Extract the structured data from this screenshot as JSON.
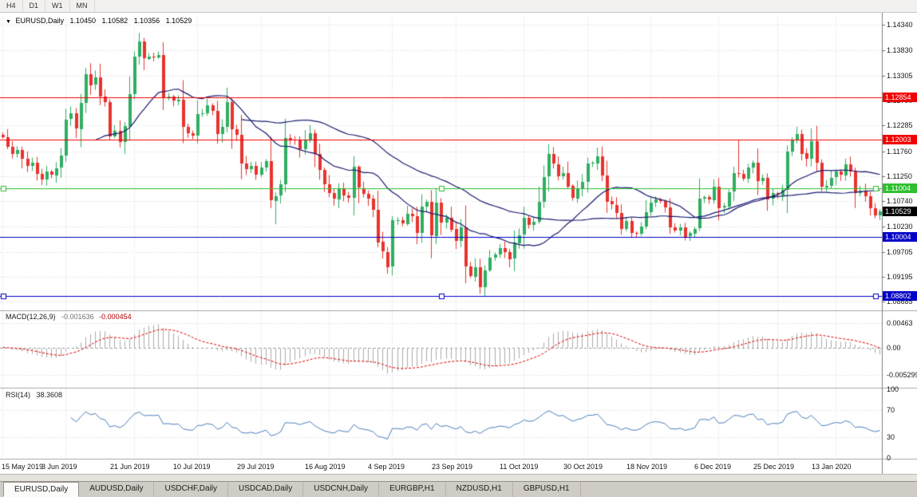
{
  "toolbar": {
    "timeframes": [
      "H4",
      "D1",
      "W1",
      "MN"
    ]
  },
  "icons": {
    "dropdown": "▼"
  },
  "chart_header": {
    "symbol": "EURUSD,Daily",
    "open": "1.10450",
    "high": "1.10582",
    "low": "1.10356",
    "close": "1.10529"
  },
  "tabs": [
    {
      "label": "EURUSD,Daily"
    },
    {
      "label": "AUDUSD,Daily"
    },
    {
      "label": "USDCHF,Daily"
    },
    {
      "label": "USDCAD,Daily"
    },
    {
      "label": "USDCNH,Daily"
    },
    {
      "label": "EURGBP,H1"
    },
    {
      "label": "NZDUSD,H1"
    },
    {
      "label": "GBPUSD,H1"
    }
  ],
  "chart_data": {
    "type": "candlestick",
    "symbol": "EURUSD",
    "timeframe": "Daily",
    "first_open": 1.121,
    "closes": [
      1.1205,
      1.1185,
      1.117,
      1.1178,
      1.116,
      1.1145,
      1.1152,
      1.113,
      1.1118,
      1.1135,
      1.1128,
      1.1142,
      1.1167,
      1.1241,
      1.1253,
      1.1222,
      1.1275,
      1.1334,
      1.1312,
      1.1327,
      1.1288,
      1.1277,
      1.1207,
      1.1218,
      1.1195,
      1.1227,
      1.1293,
      1.1369,
      1.14,
      1.1365,
      1.137,
      1.1368,
      1.1373,
      1.1285,
      1.1287,
      1.1279,
      1.1282,
      1.1226,
      1.1213,
      1.1208,
      1.1252,
      1.1253,
      1.127,
      1.1259,
      1.1211,
      1.1226,
      1.1277,
      1.1221,
      1.1209,
      1.1151,
      1.1139,
      1.1146,
      1.1128,
      1.1143,
      1.1156,
      1.1076,
      1.1085,
      1.1108,
      1.1203,
      1.12,
      1.1199,
      1.1181,
      1.12,
      1.1213,
      1.1171,
      1.1138,
      1.1108,
      1.109,
      1.1078,
      1.11,
      1.1086,
      1.1081,
      1.1144,
      1.1101,
      1.1089,
      1.1079,
      1.1057,
      1.0991,
      1.0971,
      1.094,
      1.1035,
      1.1035,
      1.1028,
      1.1049,
      1.1044,
      1.101,
      1.1063,
      1.1073,
      1.1004,
      1.1072,
      1.1031,
      1.1041,
      1.1017,
      1.0993,
      1.102,
      1.0941,
      1.0921,
      1.094,
      1.0899,
      1.0933,
      1.0959,
      1.0966,
      1.0979,
      1.0971,
      1.0957,
      1.0989,
      1.1005,
      1.104,
      1.1026,
      1.1032,
      1.1073,
      1.1124,
      1.117,
      1.115,
      1.1126,
      1.1132,
      1.1105,
      1.108,
      1.1099,
      1.1113,
      1.1151,
      1.1152,
      1.1166,
      1.1127,
      1.1074,
      1.1067,
      1.105,
      1.1018,
      1.1034,
      1.1009,
      1.1007,
      1.1022,
      1.1052,
      1.1072,
      1.1078,
      1.1074,
      1.1061,
      1.1021,
      1.1015,
      1.1021,
      1.1002,
      1.1009,
      1.1018,
      1.1079,
      1.1082,
      1.1077,
      1.1104,
      1.106,
      1.1064,
      1.1093,
      1.1131,
      1.113,
      1.1121,
      1.1143,
      1.1152,
      1.1115,
      1.1122,
      1.1078,
      1.109,
      1.1087,
      1.1098,
      1.1176,
      1.1199,
      1.1212,
      1.1172,
      1.116,
      1.1196,
      1.1152,
      1.1103,
      1.1106,
      1.1122,
      1.1134,
      1.1127,
      1.115,
      1.1136,
      1.109,
      1.1095,
      1.1084,
      1.106,
      1.1045,
      1.10529
    ],
    "wick_overrides": {
      "28": {
        "h": 1.1418
      },
      "55": {
        "l": 1.106
      },
      "56": {
        "l": 1.1027
      },
      "79": {
        "l": 1.0926
      },
      "98": {
        "l": 1.0885
      },
      "99": {
        "l": 1.0879
      },
      "151": {
        "h": 1.12
      },
      "161": {
        "h": 1.1188
      },
      "180": {
        "o": 1.1045,
        "h": 1.10582,
        "l": 1.10356
      }
    },
    "ma_periods": [
      20,
      50
    ],
    "x_labels": [
      {
        "label": "15 May 2019",
        "i": 0
      },
      {
        "label": "3 Jun 2019",
        "i": 13
      },
      {
        "label": "21 Jun 2019",
        "i": 27
      },
      {
        "label": "10 Jul 2019",
        "i": 40
      },
      {
        "label": "29 Jul 2019",
        "i": 53
      },
      {
        "label": "16 Aug 2019",
        "i": 67
      },
      {
        "label": "4 Sep 2019",
        "i": 80
      },
      {
        "label": "23 Sep 2019",
        "i": 93
      },
      {
        "label": "11 Oct 2019",
        "i": 107
      },
      {
        "label": "30 Oct 2019",
        "i": 120
      },
      {
        "label": "18 Nov 2019",
        "i": 133
      },
      {
        "label": "6 Dec 2019",
        "i": 147
      },
      {
        "label": "25 Dec 2019",
        "i": 159
      },
      {
        "label": "13 Jan 2020",
        "i": 171
      }
    ],
    "y_ticks": [
      "1.14340",
      "1.13830",
      "1.13305",
      "1.12790",
      "1.12285",
      "1.11760",
      "1.11250",
      "1.10740",
      "1.10230",
      "1.09705",
      "1.09195",
      "1.08685"
    ],
    "levels": [
      {
        "value": 1.12854,
        "label": "1.12854",
        "color": "#f00000",
        "handles": false
      },
      {
        "value": 1.12003,
        "label": "1.12003",
        "color": "#f00000",
        "handles": false
      },
      {
        "value": 1.11004,
        "label": "1.11004",
        "color": "#2fbf2f",
        "handles": true
      },
      {
        "value": 1.10004,
        "label": "1.10004",
        "color": "#0000c8",
        "handles": false
      },
      {
        "value": 1.08802,
        "label": "1.08802",
        "color": "#0000c8",
        "handles": true
      }
    ],
    "current_price": {
      "value": 1.10529,
      "label": "1.10529"
    },
    "macd": {
      "label": "MACD(12,26,9)",
      "values": [
        "-0.001636",
        "-0.000454"
      ],
      "fast": 12,
      "slow": 26,
      "signal": 9,
      "axis_labels": [
        "0.00463",
        "0.00",
        "-0.005299"
      ]
    },
    "rsi": {
      "label": "RSI(14)",
      "value": "38.3608",
      "period": 14,
      "axis_labels": [
        "100",
        "70",
        "30",
        "0"
      ],
      "guides": [
        70,
        30
      ]
    },
    "colors": {
      "up": "#2fae62",
      "down": "#e8332e",
      "ma": "#191970",
      "macd_hist": "#ababab",
      "macd_signal": "#dd0000",
      "rsi_line": "#4a7ebb",
      "grid": "#d8d8d8"
    }
  }
}
